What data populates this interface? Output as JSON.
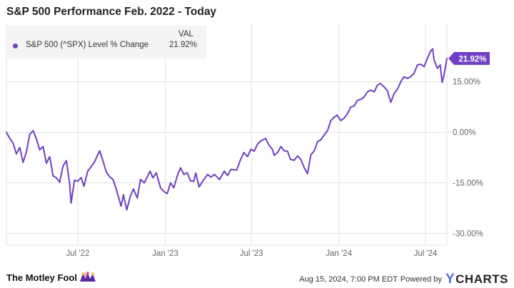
{
  "chart_data": {
    "type": "line",
    "title": "S&P 500 Performance Feb. 2022 - Today",
    "legend": {
      "header": "VAL",
      "placement": "top-left",
      "entries": [
        {
          "name": "S&P 500 (^SPX) Level % Change",
          "value": "21.92%"
        }
      ]
    },
    "xlim": [
      "2022-02-01",
      "2024-08-15"
    ],
    "ylim": [
      -33.5,
      32.5
    ],
    "grid": true,
    "x_tick_labels": [
      {
        "label": "Jul '22",
        "date": "2022-07-01"
      },
      {
        "label": "Jan '23",
        "date": "2023-01-01"
      },
      {
        "label": "Jul '23",
        "date": "2023-07-01"
      },
      {
        "label": "Jan '24",
        "date": "2024-01-01"
      },
      {
        "label": "Jul '24",
        "date": "2024-07-01"
      }
    ],
    "y_tick_labels": [
      {
        "label": "15.00%",
        "value": 15
      },
      {
        "label": "0.00%",
        "value": 0
      },
      {
        "label": "-15.00%",
        "value": -15
      },
      {
        "label": "-30.00%",
        "value": -30
      }
    ],
    "last_value_label": "21.92%",
    "series": [
      {
        "name": "S&P 500 (^SPX) Level % Change",
        "color": "#6f3fc4",
        "points": [
          [
            "2022-02-01",
            0.0
          ],
          [
            "2022-02-08",
            -1.8
          ],
          [
            "2022-02-15",
            -3.2
          ],
          [
            "2022-02-22",
            -6.4
          ],
          [
            "2022-03-01",
            -4.5
          ],
          [
            "2022-03-08",
            -8.9
          ],
          [
            "2022-03-15",
            -5.8
          ],
          [
            "2022-03-22",
            -0.6
          ],
          [
            "2022-03-29",
            0.5
          ],
          [
            "2022-04-05",
            -2.0
          ],
          [
            "2022-04-12",
            -5.2
          ],
          [
            "2022-04-19",
            -4.2
          ],
          [
            "2022-04-26",
            -9.2
          ],
          [
            "2022-05-03",
            -7.2
          ],
          [
            "2022-05-10",
            -12.9
          ],
          [
            "2022-05-17",
            -13.5
          ],
          [
            "2022-05-24",
            -14.8
          ],
          [
            "2022-05-31",
            -10.0
          ],
          [
            "2022-06-07",
            -8.4
          ],
          [
            "2022-06-14",
            -15.3
          ],
          [
            "2022-06-17",
            -21.0
          ],
          [
            "2022-06-24",
            -14.2
          ],
          [
            "2022-07-01",
            -14.5
          ],
          [
            "2022-07-08",
            -13.4
          ],
          [
            "2022-07-14",
            -16.0
          ],
          [
            "2022-07-22",
            -11.5
          ],
          [
            "2022-07-29",
            -10.2
          ],
          [
            "2022-08-05",
            -8.8
          ],
          [
            "2022-08-16",
            -5.5
          ],
          [
            "2022-08-23",
            -8.5
          ],
          [
            "2022-08-30",
            -11.8
          ],
          [
            "2022-09-06",
            -13.2
          ],
          [
            "2022-09-13",
            -14.0
          ],
          [
            "2022-09-20",
            -16.9
          ],
          [
            "2022-09-30",
            -21.9
          ],
          [
            "2022-10-05",
            -18.5
          ],
          [
            "2022-10-12",
            -23.0
          ],
          [
            "2022-10-19",
            -19.2
          ],
          [
            "2022-10-26",
            -16.8
          ],
          [
            "2022-11-03",
            -19.5
          ],
          [
            "2022-11-10",
            -14.0
          ],
          [
            "2022-11-18",
            -15.0
          ],
          [
            "2022-11-30",
            -11.5
          ],
          [
            "2022-12-06",
            -13.5
          ],
          [
            "2022-12-13",
            -12.0
          ],
          [
            "2022-12-22",
            -16.5
          ],
          [
            "2022-12-29",
            -17.5
          ],
          [
            "2023-01-05",
            -18.2
          ],
          [
            "2023-01-12",
            -15.0
          ],
          [
            "2023-01-19",
            -16.5
          ],
          [
            "2023-01-26",
            -13.0
          ],
          [
            "2023-02-02",
            -10.5
          ],
          [
            "2023-02-09",
            -12.5
          ],
          [
            "2023-02-16",
            -12.0
          ],
          [
            "2023-02-23",
            -14.4
          ],
          [
            "2023-03-02",
            -14.5
          ],
          [
            "2023-03-06",
            -12.1
          ],
          [
            "2023-03-13",
            -16.2
          ],
          [
            "2023-03-20",
            -14.6
          ],
          [
            "2023-03-31",
            -12.5
          ],
          [
            "2023-04-07",
            -13.3
          ],
          [
            "2023-04-14",
            -12.5
          ],
          [
            "2023-04-25",
            -14.0
          ],
          [
            "2023-05-05",
            -11.5
          ],
          [
            "2023-05-12",
            -12.8
          ],
          [
            "2023-05-19",
            -11.0
          ],
          [
            "2023-05-31",
            -11.2
          ],
          [
            "2023-06-07",
            -8.5
          ],
          [
            "2023-06-15",
            -6.0
          ],
          [
            "2023-06-23",
            -7.2
          ],
          [
            "2023-06-30",
            -5.0
          ],
          [
            "2023-07-07",
            -5.6
          ],
          [
            "2023-07-14",
            -3.5
          ],
          [
            "2023-07-21",
            -2.5
          ],
          [
            "2023-07-31",
            -1.8
          ],
          [
            "2023-08-07",
            -3.8
          ],
          [
            "2023-08-14",
            -5.0
          ],
          [
            "2023-08-18",
            -6.8
          ],
          [
            "2023-08-25",
            -6.0
          ],
          [
            "2023-09-01",
            -4.2
          ],
          [
            "2023-09-08",
            -5.5
          ],
          [
            "2023-09-15",
            -5.6
          ],
          [
            "2023-09-21",
            -8.0
          ],
          [
            "2023-09-29",
            -8.3
          ],
          [
            "2023-10-06",
            -7.0
          ],
          [
            "2023-10-13",
            -8.0
          ],
          [
            "2023-10-20",
            -10.5
          ],
          [
            "2023-10-27",
            -12.3
          ],
          [
            "2023-11-03",
            -6.7
          ],
          [
            "2023-11-10",
            -5.5
          ],
          [
            "2023-11-17",
            -2.8
          ],
          [
            "2023-11-24",
            -2.2
          ],
          [
            "2023-12-01",
            -0.8
          ],
          [
            "2023-12-08",
            0.5
          ],
          [
            "2023-12-15",
            3.5
          ],
          [
            "2023-12-22",
            4.5
          ],
          [
            "2023-12-28",
            5.1
          ],
          [
            "2024-01-05",
            3.5
          ],
          [
            "2024-01-12",
            4.2
          ],
          [
            "2024-01-19",
            5.5
          ],
          [
            "2024-01-26",
            7.5
          ],
          [
            "2024-02-02",
            7.8
          ],
          [
            "2024-02-09",
            9.5
          ],
          [
            "2024-02-16",
            9.8
          ],
          [
            "2024-02-23",
            10.5
          ],
          [
            "2024-03-01",
            12.0
          ],
          [
            "2024-03-08",
            12.5
          ],
          [
            "2024-03-15",
            12.0
          ],
          [
            "2024-03-22",
            14.0
          ],
          [
            "2024-03-28",
            14.5
          ],
          [
            "2024-04-05",
            13.5
          ],
          [
            "2024-04-12",
            12.3
          ],
          [
            "2024-04-19",
            8.9
          ],
          [
            "2024-04-26",
            11.5
          ],
          [
            "2024-05-03",
            12.8
          ],
          [
            "2024-05-10",
            15.0
          ],
          [
            "2024-05-17",
            16.5
          ],
          [
            "2024-05-24",
            16.0
          ],
          [
            "2024-05-31",
            16.5
          ],
          [
            "2024-06-07",
            17.5
          ],
          [
            "2024-06-14",
            20.0
          ],
          [
            "2024-06-21",
            20.2
          ],
          [
            "2024-06-28",
            19.5
          ],
          [
            "2024-07-05",
            22.0
          ],
          [
            "2024-07-12",
            24.1
          ],
          [
            "2024-07-16",
            24.8
          ],
          [
            "2024-07-19",
            21.5
          ],
          [
            "2024-07-26",
            19.0
          ],
          [
            "2024-08-01",
            20.0
          ],
          [
            "2024-08-05",
            14.8
          ],
          [
            "2024-08-09",
            17.0
          ],
          [
            "2024-08-15",
            21.92
          ]
        ]
      }
    ]
  },
  "footer": {
    "brand": "The Motley Fool",
    "timestamp": "Aug 15, 2024, 7:00 PM EDT",
    "powered_by": "Powered by",
    "ycharts_y": "Y",
    "ycharts_rest": "CHARTS"
  },
  "colors": {
    "line": "#6f3fc4",
    "grid": "#e2e2e2",
    "axis_text": "#666666",
    "ycharts_blue": "#5470d6"
  }
}
